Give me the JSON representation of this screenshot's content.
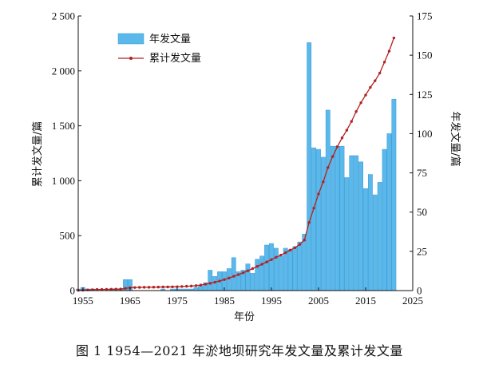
{
  "caption": "图 1    1954—2021 年淤地坝研究年发文量及累计发文量",
  "chart_data": {
    "type": "bar+line",
    "xlabel": "年份",
    "ylabel_left": "累计发文量/篇",
    "ylabel_right": "年发文量/篇",
    "xlim": [
      1954,
      2025
    ],
    "xticks": [
      1955,
      1965,
      1975,
      1985,
      1995,
      2005,
      2015,
      2025
    ],
    "ylim_left": [
      0,
      2500
    ],
    "yticks_left": [
      0,
      500,
      1000,
      1500,
      2000,
      2500
    ],
    "yticklabels_left": [
      "0",
      "500",
      "1 000",
      "1 500",
      "2 000",
      "2 500"
    ],
    "ylim_right": [
      0,
      175
    ],
    "yticks_right": [
      0,
      25,
      50,
      75,
      100,
      125,
      150,
      175
    ],
    "legend_position": "top-left",
    "colors": {
      "bar": "#5bb8ea",
      "bar_edge": "#3a9ad4",
      "line": "#b22222"
    },
    "series": [
      {
        "name": "年发文量",
        "kind": "bar",
        "axis": "right",
        "x": [
          1954,
          1955,
          1956,
          1957,
          1958,
          1959,
          1960,
          1961,
          1962,
          1963,
          1964,
          1965,
          1966,
          1967,
          1968,
          1969,
          1970,
          1971,
          1972,
          1973,
          1974,
          1975,
          1976,
          1977,
          1978,
          1979,
          1980,
          1981,
          1982,
          1983,
          1984,
          1985,
          1986,
          1987,
          1988,
          1989,
          1990,
          1991,
          1992,
          1993,
          1994,
          1995,
          1996,
          1997,
          1998,
          1999,
          2000,
          2001,
          2002,
          2003,
          2004,
          2005,
          2006,
          2007,
          2008,
          2009,
          2010,
          2011,
          2012,
          2013,
          2014,
          2015,
          2016,
          2017,
          2018,
          2019,
          2020,
          2021
        ],
        "values": [
          1,
          2,
          1,
          1,
          0,
          0,
          0,
          1,
          1,
          1,
          7,
          7,
          0,
          0,
          0,
          0,
          0,
          0,
          1,
          0,
          1,
          1,
          1,
          1,
          1,
          2,
          3,
          5,
          13,
          9,
          12,
          12,
          14,
          21,
          12,
          13,
          17,
          11,
          20,
          22,
          29,
          30,
          27,
          22,
          27,
          26,
          28,
          31,
          36,
          158,
          91,
          90,
          85,
          115,
          92,
          92,
          92,
          72,
          86,
          86,
          82,
          65,
          74,
          61,
          69,
          90,
          100,
          122
        ]
      },
      {
        "name": "累计发文量",
        "kind": "line",
        "axis": "left",
        "x": [
          1954,
          1955,
          1956,
          1957,
          1958,
          1959,
          1960,
          1961,
          1962,
          1963,
          1964,
          1965,
          1966,
          1967,
          1968,
          1969,
          1970,
          1971,
          1972,
          1973,
          1974,
          1975,
          1976,
          1977,
          1978,
          1979,
          1980,
          1981,
          1982,
          1983,
          1984,
          1985,
          1986,
          1987,
          1988,
          1989,
          1990,
          1991,
          1992,
          1993,
          1994,
          1995,
          1996,
          1997,
          1998,
          1999,
          2000,
          2001,
          2002,
          2003,
          2004,
          2005,
          2006,
          2007,
          2008,
          2009,
          2010,
          2011,
          2012,
          2013,
          2014,
          2015,
          2016,
          2017,
          2018,
          2019,
          2020,
          2021
        ],
        "values": [
          2,
          4,
          6,
          8,
          10,
          10,
          11,
          12,
          13,
          14,
          20,
          26,
          28,
          29,
          30,
          30,
          31,
          32,
          33,
          33,
          34,
          35,
          37,
          39,
          41,
          45,
          50,
          58,
          66,
          76,
          87,
          100,
          114,
          130,
          145,
          162,
          180,
          200,
          220,
          240,
          260,
          282,
          303,
          323,
          345,
          368,
          390,
          420,
          460,
          620,
          750,
          880,
          990,
          1120,
          1220,
          1310,
          1390,
          1460,
          1540,
          1630,
          1710,
          1780,
          1850,
          1910,
          1980,
          2080,
          2180,
          2300
        ]
      }
    ]
  }
}
